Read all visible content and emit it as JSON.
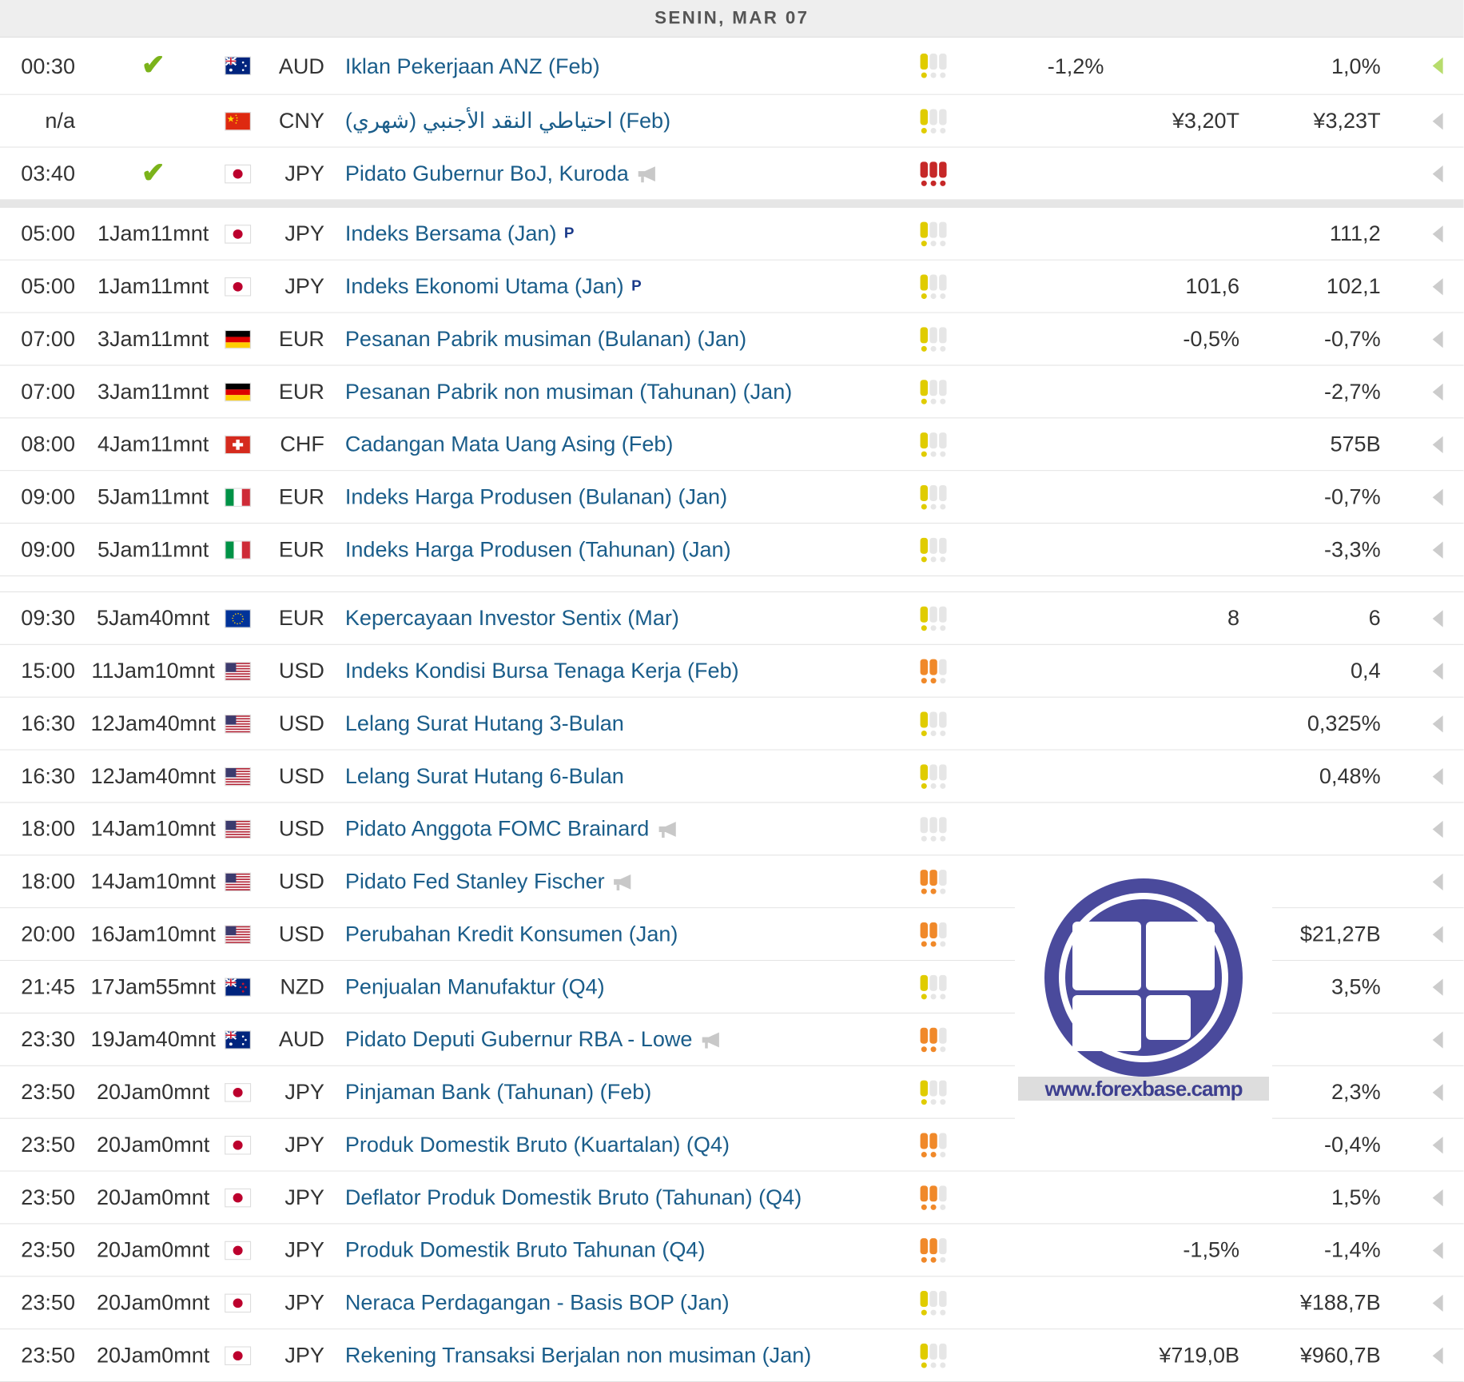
{
  "day_header": "SENIN, MAR 07",
  "colors": {
    "link": "#1a5d8a",
    "check": "#7bb31a",
    "low": "#e0cc00",
    "medium": "#f0892a",
    "high": "#c62828"
  },
  "events": [
    {
      "time": "00:30",
      "status": "check",
      "flag": "AU",
      "currency": "AUD",
      "event": "Iklan Pekerjaan ANZ (Feb)",
      "extra": "",
      "impact": 1,
      "actual": "-1,2%",
      "forecast": "",
      "previous": "1,0%",
      "arrow": "green"
    },
    {
      "time": "n/a",
      "status": "",
      "flag": "CN",
      "currency": "CNY",
      "event": "احتياطي النقد الأجنبي (شهري) (Feb)",
      "extra": "",
      "impact": 1,
      "actual": "",
      "forecast": "¥3,20T",
      "previous": "¥3,23T",
      "arrow": "grey"
    },
    {
      "time": "03:40",
      "status": "check",
      "flag": "JP",
      "currency": "JPY",
      "event": "Pidato Gubernur BoJ, Kuroda",
      "extra": "speech",
      "impact": 3,
      "actual": "",
      "forecast": "",
      "previous": "",
      "arrow": "grey"
    },
    {
      "time": "05:00",
      "status": "1Jam11mnt",
      "flag": "JP",
      "currency": "JPY",
      "event": "Indeks Bersama (Jan)",
      "extra": "P",
      "impact": 1,
      "actual": "",
      "forecast": "",
      "previous": "111,2",
      "arrow": "grey",
      "divider": true
    },
    {
      "time": "05:00",
      "status": "1Jam11mnt",
      "flag": "JP",
      "currency": "JPY",
      "event": "Indeks Ekonomi Utama (Jan)",
      "extra": "P",
      "impact": 1,
      "actual": "",
      "forecast": "101,6",
      "previous": "102,1",
      "arrow": "grey"
    },
    {
      "time": "07:00",
      "status": "3Jam11mnt",
      "flag": "DE",
      "currency": "EUR",
      "event": "Pesanan Pabrik musiman (Bulanan) (Jan)",
      "extra": "",
      "impact": 1,
      "actual": "",
      "forecast": "-0,5%",
      "previous": "-0,7%",
      "arrow": "grey"
    },
    {
      "time": "07:00",
      "status": "3Jam11mnt",
      "flag": "DE",
      "currency": "EUR",
      "event": "Pesanan Pabrik non musiman (Tahunan) (Jan)",
      "extra": "",
      "impact": 1,
      "actual": "",
      "forecast": "",
      "previous": "-2,7%",
      "arrow": "grey"
    },
    {
      "time": "08:00",
      "status": "4Jam11mnt",
      "flag": "CH",
      "currency": "CHF",
      "event": "Cadangan Mata Uang Asing (Feb)",
      "extra": "",
      "impact": 1,
      "actual": "",
      "forecast": "",
      "previous": "575B",
      "arrow": "grey"
    },
    {
      "time": "09:00",
      "status": "5Jam11mnt",
      "flag": "IT",
      "currency": "EUR",
      "event": "Indeks Harga Produsen (Bulanan) (Jan)",
      "extra": "",
      "impact": 1,
      "actual": "",
      "forecast": "",
      "previous": "-0,7%",
      "arrow": "grey"
    },
    {
      "time": "09:00",
      "status": "5Jam11mnt",
      "flag": "IT",
      "currency": "EUR",
      "event": "Indeks Harga Produsen (Tahunan) (Jan)",
      "extra": "",
      "impact": 1,
      "actual": "",
      "forecast": "",
      "previous": "-3,3%",
      "arrow": "grey"
    },
    {
      "time": "09:30",
      "status": "5Jam40mnt",
      "flag": "EU",
      "currency": "EUR",
      "event": "Kepercayaan Investor Sentix (Mar)",
      "extra": "",
      "impact": 1,
      "actual": "",
      "forecast": "8",
      "previous": "6",
      "arrow": "grey",
      "gap": true
    },
    {
      "time": "15:00",
      "status": "11Jam10mnt",
      "flag": "US",
      "currency": "USD",
      "event": "Indeks Kondisi Bursa Tenaga Kerja (Feb)",
      "extra": "",
      "impact": 2,
      "actual": "",
      "forecast": "",
      "previous": "0,4",
      "arrow": "grey"
    },
    {
      "time": "16:30",
      "status": "12Jam40mnt",
      "flag": "US",
      "currency": "USD",
      "event": "Lelang Surat Hutang 3-Bulan",
      "extra": "",
      "impact": 1,
      "actual": "",
      "forecast": "",
      "previous": "0,325%",
      "arrow": "grey"
    },
    {
      "time": "16:30",
      "status": "12Jam40mnt",
      "flag": "US",
      "currency": "USD",
      "event": "Lelang Surat Hutang 6-Bulan",
      "extra": "",
      "impact": 1,
      "actual": "",
      "forecast": "",
      "previous": "0,48%",
      "arrow": "grey"
    },
    {
      "time": "18:00",
      "status": "14Jam10mnt",
      "flag": "US",
      "currency": "USD",
      "event": "Pidato Anggota FOMC Brainard",
      "extra": "speech",
      "impact": 0,
      "actual": "",
      "forecast": "",
      "previous": "",
      "arrow": "grey"
    },
    {
      "time": "18:00",
      "status": "14Jam10mnt",
      "flag": "US",
      "currency": "USD",
      "event": "Pidato Fed Stanley Fischer",
      "extra": "speech",
      "impact": 2,
      "actual": "",
      "forecast": "",
      "previous": "",
      "arrow": "grey"
    },
    {
      "time": "20:00",
      "status": "16Jam10mnt",
      "flag": "US",
      "currency": "USD",
      "event": "Perubahan Kredit Konsumen (Jan)",
      "extra": "",
      "impact": 2,
      "actual": "",
      "forecast": "",
      "previous": "$21,27B",
      "arrow": "grey"
    },
    {
      "time": "21:45",
      "status": "17Jam55mnt",
      "flag": "NZ",
      "currency": "NZD",
      "event": "Penjualan Manufaktur (Q4)",
      "extra": "",
      "impact": 1,
      "actual": "",
      "forecast": "",
      "previous": "3,5%",
      "arrow": "grey"
    },
    {
      "time": "23:30",
      "status": "19Jam40mnt",
      "flag": "AU",
      "currency": "AUD",
      "event": "Pidato Deputi Gubernur RBA - Lowe",
      "extra": "speech",
      "impact": 2,
      "actual": "",
      "forecast": "",
      "previous": "",
      "arrow": "grey"
    },
    {
      "time": "23:50",
      "status": "20Jam0mnt",
      "flag": "JP",
      "currency": "JPY",
      "event": "Pinjaman Bank (Tahunan) (Feb)",
      "extra": "",
      "impact": 1,
      "actual": "",
      "forecast": "",
      "previous": "2,3%",
      "arrow": "grey"
    },
    {
      "time": "23:50",
      "status": "20Jam0mnt",
      "flag": "JP",
      "currency": "JPY",
      "event": "Produk Domestik Bruto (Kuartalan) (Q4)",
      "extra": "",
      "impact": 2,
      "actual": "",
      "forecast": "",
      "previous": "-0,4%",
      "arrow": "grey"
    },
    {
      "time": "23:50",
      "status": "20Jam0mnt",
      "flag": "JP",
      "currency": "JPY",
      "event": "Deflator Produk Domestik Bruto (Tahunan) (Q4)",
      "extra": "",
      "impact": 2,
      "actual": "",
      "forecast": "",
      "previous": "1,5%",
      "arrow": "grey"
    },
    {
      "time": "23:50",
      "status": "20Jam0mnt",
      "flag": "JP",
      "currency": "JPY",
      "event": "Produk Domestik Bruto Tahunan (Q4)",
      "extra": "",
      "impact": 2,
      "actual": "",
      "forecast": "-1,5%",
      "previous": "-1,4%",
      "arrow": "grey"
    },
    {
      "time": "23:50",
      "status": "20Jam0mnt",
      "flag": "JP",
      "currency": "JPY",
      "event": "Neraca Perdagangan - Basis BOP (Jan)",
      "extra": "",
      "impact": 1,
      "actual": "",
      "forecast": "",
      "previous": "¥188,7B",
      "arrow": "grey"
    },
    {
      "time": "23:50",
      "status": "20Jam0mnt",
      "flag": "JP",
      "currency": "JPY",
      "event": "Rekening Transaksi Berjalan non musiman (Jan)",
      "extra": "",
      "impact": 1,
      "actual": "",
      "forecast": "¥719,0B",
      "previous": "¥960,7B",
      "arrow": "grey"
    }
  ],
  "watermark": {
    "text": "www.forexbase.camp"
  }
}
